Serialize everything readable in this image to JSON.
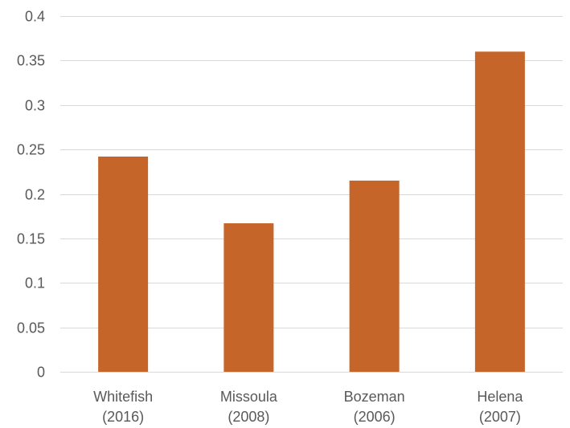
{
  "chart_data": {
    "type": "bar",
    "title": "",
    "xlabel": "",
    "ylabel": "",
    "categories": [
      [
        "Whitefish",
        "(2016)"
      ],
      [
        "Missoula",
        "(2008)"
      ],
      [
        "Bozeman",
        "(2006)"
      ],
      [
        "Helena",
        "(2007)"
      ]
    ],
    "values": [
      0.242,
      0.167,
      0.215,
      0.36
    ],
    "ylim": [
      0,
      0.4
    ],
    "yticks": [
      "0",
      "0.05",
      "0.1",
      "0.15",
      "0.2",
      "0.25",
      "0.3",
      "0.35",
      "0.4"
    ],
    "grid": true,
    "legend": "none",
    "bar_color": "#c5652a",
    "grid_color": "#d9d9d9",
    "text_color": "#595959"
  }
}
